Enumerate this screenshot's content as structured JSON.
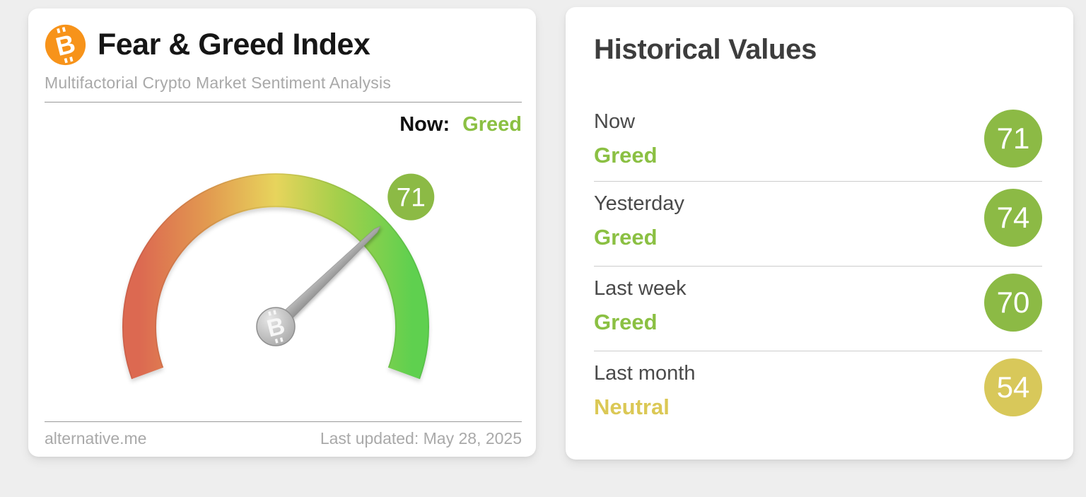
{
  "chart_data": {
    "type": "gauge",
    "title": "Fear & Greed Index",
    "value": 71,
    "classification": "Greed",
    "range": [
      0,
      100
    ],
    "gauge_start_angle_deg": 200,
    "gauge_end_angle_deg": -20,
    "historical": [
      {
        "label": "Now",
        "value": 71,
        "classification": "Greed"
      },
      {
        "label": "Yesterday",
        "value": 74,
        "classification": "Greed"
      },
      {
        "label": "Last week",
        "value": 70,
        "classification": "Greed"
      },
      {
        "label": "Last month",
        "value": 54,
        "classification": "Neutral"
      }
    ]
  },
  "icons": {
    "bitcoin_glyph": "B"
  },
  "fear_greed_card": {
    "title": "Fear & Greed Index",
    "subtitle": "Multifactorial Crypto Market Sentiment Analysis",
    "now": {
      "label": "Now:",
      "value": "Greed",
      "value_color": "#8bc043"
    },
    "gauge": {
      "value": 71,
      "min": 0,
      "max": 100,
      "start_angle_deg": 200,
      "end_angle_deg": -20,
      "badge": {
        "text": "71",
        "color": "#8cba45"
      },
      "band_gradient": [
        "#dc6951",
        "#e29a50",
        "#e7d45c",
        "#a7cf4b",
        "#5fd04f"
      ],
      "needle_color": "#a6a6a6",
      "hub_color": "#bdbdbd"
    },
    "footer": {
      "source": "alternative.me",
      "last_updated": "Last updated: May 28, 2025"
    }
  },
  "historical_card": {
    "title": "Historical Values",
    "rows": [
      {
        "label": "Now",
        "classification": "Greed",
        "value": "71",
        "text_color": "#8bc043",
        "badge_color": "#8cba45"
      },
      {
        "label": "Yesterday",
        "classification": "Greed",
        "value": "74",
        "text_color": "#8bc043",
        "badge_color": "#8cba45"
      },
      {
        "label": "Last week",
        "classification": "Greed",
        "value": "70",
        "text_color": "#8bc043",
        "badge_color": "#8cba45"
      },
      {
        "label": "Last month",
        "classification": "Neutral",
        "value": "54",
        "text_color": "#dbc855",
        "badge_color": "#d8c85a"
      }
    ]
  },
  "colors": {
    "page_background": "#eeeeee",
    "bitcoin_orange": "#f7931a",
    "green_text": "#8bc043",
    "yellow_text": "#dbc855",
    "green_badge": "#8cba45",
    "yellow_badge": "#d8c85a"
  }
}
